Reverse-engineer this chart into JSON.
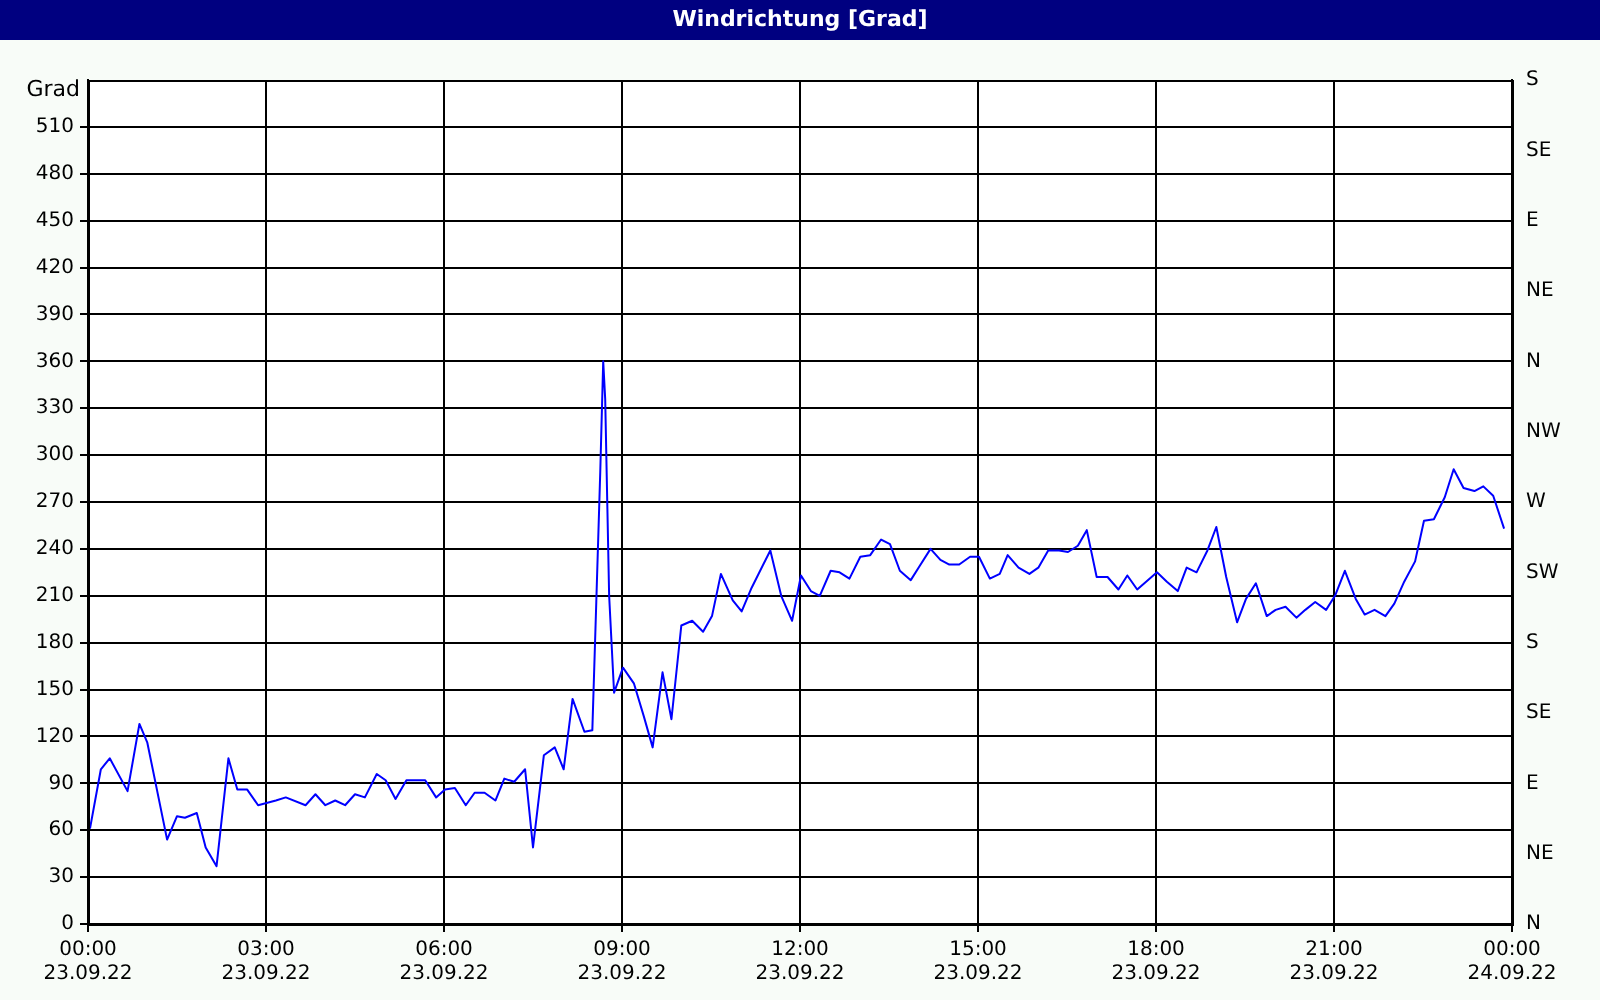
{
  "chart_data": {
    "type": "line",
    "title": "Windrichtung [Grad]",
    "ylabel": "Grad",
    "x": [
      "--09-23T00:02",
      "--09-23T00:13",
      "--09-23T00:22",
      "--09-23T00:40",
      "--09-23T00:52",
      "--09-23T01:00",
      "--09-23T01:20",
      "--09-23T01:30",
      "--09-23T01:38",
      "--09-23T01:50",
      "--09-23T01:59",
      "--09-23T02:10",
      "--09-23T02:22",
      "--09-23T02:31",
      "--09-23T02:41",
      "--09-23T02:52",
      "--09-23T03:10",
      "--09-23T03:20",
      "--09-23T03:40",
      "--09-23T03:50",
      "--09-23T04:00",
      "--09-23T04:10",
      "--09-23T04:20",
      "--09-23T04:30",
      "--09-23T04:40",
      "--09-23T04:52",
      "--09-23T05:01",
      "--09-23T05:11",
      "--09-23T05:22",
      "--09-23T05:41",
      "--09-23T05:52",
      "--09-23T06:01",
      "--09-23T06:11",
      "--09-23T06:22",
      "--09-23T06:31",
      "--09-23T06:41",
      "--09-23T06:52",
      "--09-23T07:01",
      "--09-23T07:11",
      "--09-23T07:22",
      "--09-23T07:30",
      "--09-23T07:41",
      "--09-23T07:52",
      "--09-23T08:01",
      "--09-23T08:10",
      "--09-23T08:22",
      "--09-23T08:30",
      "--09-23T08:34",
      "--09-23T08:38",
      "--09-23T08:41",
      "--09-23T08:43",
      "--09-23T08:47",
      "--09-23T08:52",
      "--09-23T09:01",
      "--09-23T09:12",
      "--09-23T09:22",
      "--09-23T09:31",
      "--09-23T09:41",
      "--09-23T09:50",
      "--09-23T10:00",
      "--09-23T10:11",
      "--09-23T10:22",
      "--09-23T10:31",
      "--09-23T10:40",
      "--09-23T10:52",
      "--09-23T11:01",
      "--09-23T11:11",
      "--09-23T11:30",
      "--09-23T11:41",
      "--09-23T11:52",
      "--09-23T12:01",
      "--09-23T12:11",
      "--09-23T12:20",
      "--09-23T12:31",
      "--09-23T12:40",
      "--09-23T12:50",
      "--09-23T13:01",
      "--09-23T13:11",
      "--09-23T13:22",
      "--09-23T13:31",
      "--09-23T13:41",
      "--09-23T13:52",
      "--09-23T14:01",
      "--09-23T14:12",
      "--09-23T14:22",
      "--09-23T14:31",
      "--09-23T14:41",
      "--09-23T14:52",
      "--09-23T15:01",
      "--09-23T15:12",
      "--09-23T15:22",
      "--09-23T15:30",
      "--09-23T15:41",
      "--09-23T15:52",
      "--09-23T16:01",
      "--09-23T16:11",
      "--09-23T16:22",
      "--09-23T16:31",
      "--09-23T16:41",
      "--09-23T16:50",
      "--09-23T17:00",
      "--09-23T17:11",
      "--09-23T17:22",
      "--09-23T17:31",
      "--09-23T17:41",
      "--09-23T18:01",
      "--09-23T18:11",
      "--09-23T18:22",
      "--09-23T18:31",
      "--09-23T18:41",
      "--09-23T18:52",
      "--09-23T19:01",
      "--09-23T19:11",
      "--09-23T19:22",
      "--09-23T19:31",
      "--09-23T19:41",
      "--09-23T19:52",
      "--09-23T20:01",
      "--09-23T20:11",
      "--09-23T20:22",
      "--09-23T20:31",
      "--09-23T20:41",
      "--09-23T20:52",
      "--09-23T21:01",
      "--09-23T21:11",
      "--09-23T21:22",
      "--09-23T21:31",
      "--09-23T21:41",
      "--09-23T21:52",
      "--09-23T22:01",
      "--09-23T22:11",
      "--09-23T22:22",
      "--09-23T22:31",
      "--09-23T22:41",
      "--09-23T22:52",
      "--09-23T23:01",
      "--09-23T23:11",
      "--09-23T23:22",
      "--09-23T23:31",
      "--09-23T23:41",
      "--09-23T23:52"
    ],
    "series": [
      {
        "color": "#0000ff",
        "values": [
          61,
          99,
          106,
          85,
          128,
          116,
          54,
          69,
          68,
          71,
          49,
          37,
          106,
          86,
          86,
          76,
          79,
          81,
          76,
          83,
          76,
          79,
          76,
          83,
          81,
          96,
          92,
          80,
          92,
          92,
          81,
          86,
          87,
          76,
          84,
          84,
          79,
          93,
          91,
          99,
          49,
          108,
          113,
          99,
          144,
          123,
          124,
          206,
          289,
          360,
          336,
          210,
          148,
          164,
          154,
          133,
          113,
          161,
          131,
          191,
          194,
          187,
          197,
          224,
          207,
          200,
          215,
          239,
          210,
          194,
          223,
          213,
          210,
          226,
          225,
          221,
          235,
          236,
          246,
          243,
          226,
          220,
          229,
          240,
          233,
          230,
          230,
          235,
          235,
          221,
          224,
          236,
          228,
          224,
          228,
          239,
          239,
          238,
          242,
          252,
          222,
          222,
          214,
          223,
          214,
          225,
          219,
          213,
          228,
          225,
          239,
          254,
          222,
          193,
          208,
          218,
          197,
          201,
          203,
          196,
          201,
          206,
          201,
          210,
          226,
          208,
          198,
          201,
          197,
          205,
          219,
          232,
          258,
          259,
          273,
          291,
          279,
          277,
          280,
          274,
          253
        ]
      }
    ],
    "xlim": [
      "--09-23T00:00",
      "--09-24T00:00"
    ],
    "xticks": [
      {
        "value": "--09-23T00:00",
        "label": "00:00 23.09.22"
      },
      {
        "value": "--09-23T03:00",
        "label": "03:00 23.09.22"
      },
      {
        "value": "--09-23T06:00",
        "label": "06:00 23.09.22"
      },
      {
        "value": "--09-23T09:00",
        "label": "09:00 23.09.22"
      },
      {
        "value": "--09-23T12:00",
        "label": "12:00 23.09.22"
      },
      {
        "value": "--09-23T15:00",
        "label": "15:00 23.09.22"
      },
      {
        "value": "--09-23T18:00",
        "label": "18:00 23.09.22"
      },
      {
        "value": "--09-23T21:00",
        "label": "21:00 23.09.22"
      },
      {
        "value": "--09-24T00:00",
        "label": "00:00 24.09.22"
      }
    ],
    "ylim": [
      0,
      540
    ],
    "yticks": [
      0,
      30,
      60,
      90,
      120,
      150,
      180,
      210,
      240,
      270,
      300,
      330,
      360,
      390,
      420,
      450,
      480,
      510
    ],
    "y2_categories": [
      "S",
      "SE",
      "E",
      "NE",
      "N",
      "NW",
      "W",
      "SW",
      "S",
      "SE",
      "E",
      "NE",
      "N"
    ],
    "grid": true,
    "line_style": "solid",
    "marker": "none",
    "legend": false
  }
}
